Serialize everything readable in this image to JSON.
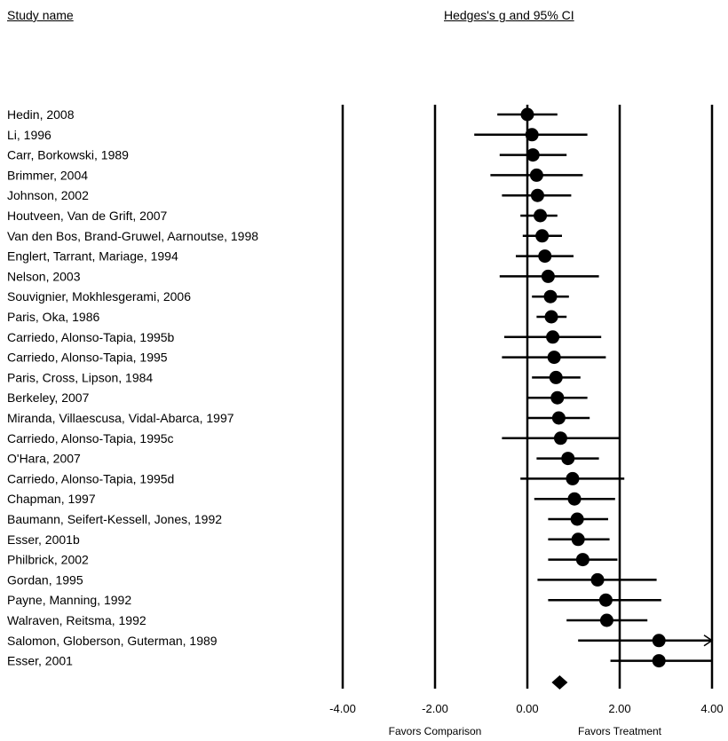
{
  "header": {
    "study_name": "Study name",
    "effect_label": "Hedges's g and 95% CI"
  },
  "chart_data": {
    "type": "forest",
    "xlim": [
      -4,
      4
    ],
    "ticks": [
      "-4.00",
      "-2.00",
      "0.00",
      "2.00",
      "4.00"
    ],
    "tick_values": [
      -4,
      -2,
      0,
      2,
      4
    ],
    "favors_left": "Favors Comparison",
    "favors_right": "Favors Treatment",
    "grid": "vertical lines at ticks",
    "studies": [
      {
        "name": "Hedin, 2008",
        "g": 0.0,
        "lower": -0.65,
        "upper": 0.65
      },
      {
        "name": "Li, 1996",
        "g": 0.1,
        "lower": -1.15,
        "upper": 1.3
      },
      {
        "name": "Carr, Borkowski, 1989",
        "g": 0.12,
        "lower": -0.6,
        "upper": 0.85
      },
      {
        "name": "Brimmer, 2004",
        "g": 0.2,
        "lower": -0.8,
        "upper": 1.2
      },
      {
        "name": "Johnson, 2002",
        "g": 0.22,
        "lower": -0.55,
        "upper": 0.95
      },
      {
        "name": "Houtveen, Van de Grift, 2007",
        "g": 0.28,
        "lower": -0.15,
        "upper": 0.65
      },
      {
        "name": "Van den Bos, Brand-Gruwel, Aarnoutse, 1998",
        "g": 0.32,
        "lower": -0.1,
        "upper": 0.75
      },
      {
        "name": "Englert, Tarrant, Mariage, 1994",
        "g": 0.38,
        "lower": -0.25,
        "upper": 1.0
      },
      {
        "name": "Nelson, 2003",
        "g": 0.45,
        "lower": -0.6,
        "upper": 1.55
      },
      {
        "name": "Souvignier, Mokhlesgerami, 2006",
        "g": 0.5,
        "lower": 0.1,
        "upper": 0.9
      },
      {
        "name": "Paris, Oka, 1986",
        "g": 0.52,
        "lower": 0.2,
        "upper": 0.85
      },
      {
        "name": "Carriedo, Alonso-Tapia, 1995b",
        "g": 0.55,
        "lower": -0.5,
        "upper": 1.6
      },
      {
        "name": "Carriedo, Alonso-Tapia, 1995",
        "g": 0.58,
        "lower": -0.55,
        "upper": 1.7
      },
      {
        "name": "Paris, Cross, Lipson, 1984",
        "g": 0.62,
        "lower": 0.1,
        "upper": 1.15
      },
      {
        "name": "Berkeley, 2007",
        "g": 0.65,
        "lower": 0.0,
        "upper": 1.3
      },
      {
        "name": "Miranda, Villaescusa, Vidal-Abarca, 1997",
        "g": 0.68,
        "lower": 0.0,
        "upper": 1.35
      },
      {
        "name": "Carriedo, Alonso-Tapia, 1995c",
        "g": 0.72,
        "lower": -0.55,
        "upper": 2.0
      },
      {
        "name": "O'Hara, 2007",
        "g": 0.88,
        "lower": 0.2,
        "upper": 1.55
      },
      {
        "name": "Carriedo, Alonso-Tapia, 1995d",
        "g": 0.98,
        "lower": -0.15,
        "upper": 2.1
      },
      {
        "name": "Chapman, 1997",
        "g": 1.02,
        "lower": 0.15,
        "upper": 1.9
      },
      {
        "name": "Baumann, Seifert-Kessell, Jones, 1992",
        "g": 1.08,
        "lower": 0.45,
        "upper": 1.75
      },
      {
        "name": "Esser, 2001b",
        "g": 1.1,
        "lower": 0.45,
        "upper": 1.78
      },
      {
        "name": "Philbrick, 2002",
        "g": 1.2,
        "lower": 0.45,
        "upper": 1.95
      },
      {
        "name": "Gordan, 1995",
        "g": 1.52,
        "lower": 0.22,
        "upper": 2.8
      },
      {
        "name": "Payne, Manning, 1992",
        "g": 1.7,
        "lower": 0.45,
        "upper": 2.9
      },
      {
        "name": "Walraven, Reitsma, 1992",
        "g": 1.72,
        "lower": 0.85,
        "upper": 2.6
      },
      {
        "name": "Salomon, Globerson, Guterman, 1989",
        "g": 2.85,
        "lower": 1.1,
        "upper": 4.0,
        "arrow": true
      },
      {
        "name": "Esser, 2001",
        "g": 2.85,
        "lower": 1.8,
        "upper": 4.0
      }
    ],
    "summary": {
      "g": 0.7
    }
  }
}
